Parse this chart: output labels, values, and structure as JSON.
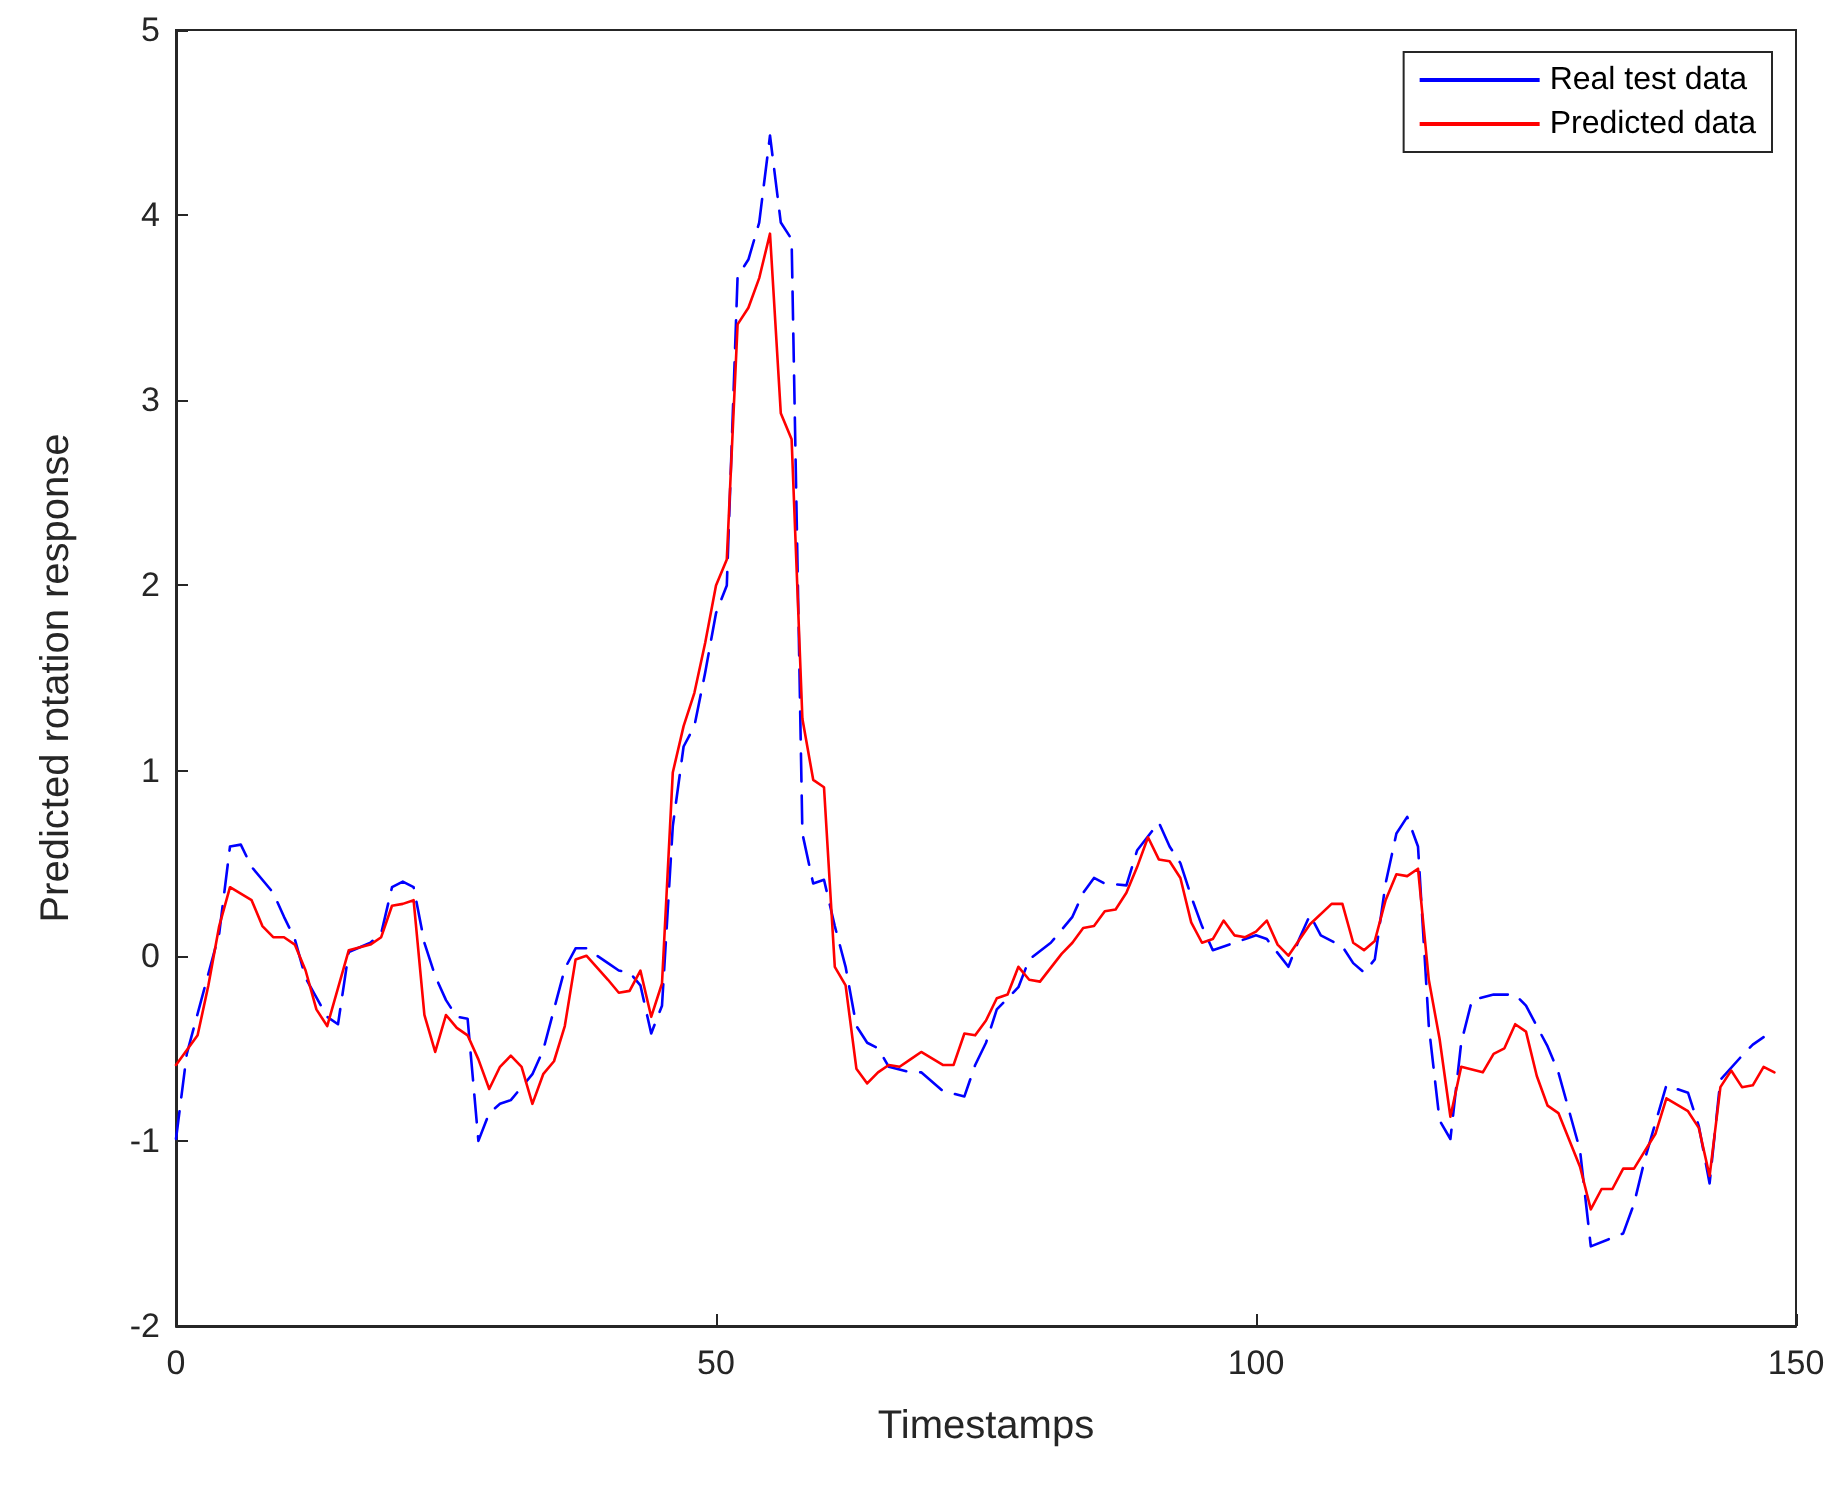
{
  "chart_data": {
    "type": "line",
    "xlabel": "Timestamps",
    "ylabel": "Predicted rotation response",
    "xlim": [
      0,
      150
    ],
    "xticks": [
      0,
      50,
      100,
      150
    ],
    "ylim": [
      -2,
      5
    ],
    "yticks": [
      -2,
      -1,
      0,
      1,
      2,
      3,
      4,
      5
    ],
    "grid": false,
    "legend": "top right",
    "marker": "none",
    "series": [
      {
        "name": "Real test data",
        "color": "#0000ff",
        "line_style": "dashed",
        "x": [
          0,
          1,
          4,
          5,
          6,
          7,
          9,
          10,
          11,
          12,
          14,
          15,
          16,
          18,
          19,
          20,
          21,
          22,
          23,
          24,
          25,
          26,
          27,
          28,
          29,
          30,
          31,
          33,
          34,
          36,
          37,
          38,
          40,
          41,
          42,
          43,
          44,
          45,
          46,
          47,
          48,
          49,
          50,
          51,
          52,
          53,
          54,
          55,
          56,
          57,
          58,
          59,
          60,
          61,
          62,
          63,
          64,
          65,
          66,
          68,
          69,
          71,
          73,
          74,
          75,
          76,
          78,
          79,
          81,
          83,
          84,
          85,
          86,
          88,
          89,
          91,
          92,
          93,
          94,
          95,
          96,
          98,
          99,
          100,
          101,
          103,
          104,
          105,
          106,
          108,
          109,
          110,
          111,
          112,
          113,
          114,
          115,
          116,
          117,
          118,
          119,
          120,
          122,
          124,
          125,
          127,
          128,
          130,
          131,
          134,
          135,
          136,
          138,
          140,
          141,
          142,
          143,
          145,
          146,
          147
        ],
        "values": [
          -0.99,
          -0.53,
          0.12,
          0.59,
          0.6,
          0.48,
          0.34,
          0.21,
          0.09,
          -0.12,
          -0.33,
          -0.37,
          0.02,
          0.07,
          0.12,
          0.37,
          0.4,
          0.37,
          0.07,
          -0.11,
          -0.24,
          -0.33,
          -0.34,
          -1.0,
          -0.85,
          -0.8,
          -0.78,
          -0.64,
          -0.51,
          -0.07,
          0.04,
          0.04,
          -0.04,
          -0.08,
          -0.09,
          -0.16,
          -0.42,
          -0.27,
          0.7,
          1.13,
          1.24,
          1.53,
          1.85,
          2.0,
          3.67,
          3.76,
          3.96,
          4.43,
          3.96,
          3.87,
          0.66,
          0.39,
          0.41,
          0.16,
          -0.06,
          -0.38,
          -0.47,
          -0.5,
          -0.6,
          -0.63,
          -0.63,
          -0.73,
          -0.76,
          -0.59,
          -0.47,
          -0.29,
          -0.17,
          -0.02,
          0.07,
          0.21,
          0.34,
          0.42,
          0.39,
          0.38,
          0.57,
          0.72,
          0.59,
          0.5,
          0.32,
          0.16,
          0.03,
          0.07,
          0.09,
          0.11,
          0.09,
          -0.06,
          0.09,
          0.22,
          0.11,
          0.05,
          -0.04,
          -0.09,
          -0.02,
          0.39,
          0.66,
          0.75,
          0.59,
          -0.38,
          -0.89,
          -0.99,
          -0.47,
          -0.24,
          -0.21,
          -0.21,
          -0.27,
          -0.49,
          -0.63,
          -1.05,
          -1.57,
          -1.5,
          -1.34,
          -1.1,
          -0.7,
          -0.74,
          -0.92,
          -1.23,
          -0.67,
          -0.54,
          -0.48,
          -0.44
        ]
      },
      {
        "name": "Predicted data",
        "color": "#ff0000",
        "line_style": "solid",
        "x": [
          0,
          2,
          3,
          4,
          5,
          7,
          8,
          9,
          10,
          11,
          12,
          13,
          14,
          16,
          18,
          19,
          20,
          21,
          22,
          23,
          24,
          25,
          26,
          27,
          28,
          29,
          30,
          31,
          32,
          33,
          34,
          35,
          36,
          37,
          38,
          40,
          41,
          42,
          43,
          44,
          45,
          46,
          47,
          48,
          49,
          50,
          51,
          52,
          53,
          54,
          55,
          56,
          57,
          58,
          59,
          60,
          61,
          62,
          63,
          64,
          65,
          66,
          67,
          68,
          69,
          71,
          72,
          73,
          74,
          75,
          76,
          77,
          78,
          79,
          80,
          82,
          83,
          84,
          85,
          86,
          87,
          88,
          89,
          90,
          91,
          92,
          93,
          94,
          95,
          96,
          97,
          98,
          99,
          100,
          101,
          102,
          103,
          105,
          107,
          108,
          109,
          110,
          111,
          112,
          113,
          114,
          115,
          116,
          117,
          118,
          119,
          121,
          122,
          123,
          124,
          125,
          126,
          127,
          128,
          130,
          131,
          132,
          133,
          134,
          135,
          137,
          138,
          140,
          141,
          142,
          143,
          144,
          145,
          146,
          147,
          148
        ],
        "values": [
          -0.59,
          -0.43,
          -0.16,
          0.16,
          0.37,
          0.3,
          0.16,
          0.1,
          0.1,
          0.06,
          -0.08,
          -0.29,
          -0.38,
          0.03,
          0.06,
          0.1,
          0.27,
          0.28,
          0.3,
          -0.32,
          -0.52,
          -0.32,
          -0.39,
          -0.43,
          -0.56,
          -0.72,
          -0.6,
          -0.54,
          -0.6,
          -0.8,
          -0.64,
          -0.57,
          -0.38,
          -0.02,
          0.0,
          -0.13,
          -0.2,
          -0.19,
          -0.08,
          -0.33,
          -0.15,
          0.99,
          1.24,
          1.42,
          1.69,
          2.0,
          2.14,
          3.41,
          3.5,
          3.66,
          3.9,
          2.93,
          2.79,
          1.28,
          0.95,
          0.91,
          -0.06,
          -0.16,
          -0.61,
          -0.69,
          -0.63,
          -0.59,
          -0.6,
          -0.56,
          -0.52,
          -0.59,
          -0.59,
          -0.42,
          -0.43,
          -0.35,
          -0.23,
          -0.21,
          -0.06,
          -0.13,
          -0.14,
          0.01,
          0.07,
          0.15,
          0.16,
          0.24,
          0.25,
          0.34,
          0.48,
          0.64,
          0.52,
          0.51,
          0.42,
          0.18,
          0.07,
          0.09,
          0.19,
          0.11,
          0.1,
          0.13,
          0.19,
          0.06,
          0.0,
          0.17,
          0.28,
          0.28,
          0.07,
          0.03,
          0.08,
          0.3,
          0.44,
          0.43,
          0.47,
          -0.13,
          -0.45,
          -0.87,
          -0.6,
          -0.63,
          -0.53,
          -0.5,
          -0.37,
          -0.41,
          -0.65,
          -0.81,
          -0.85,
          -1.14,
          -1.37,
          -1.26,
          -1.26,
          -1.15,
          -1.15,
          -0.96,
          -0.77,
          -0.84,
          -0.93,
          -1.19,
          -0.71,
          -0.62,
          -0.71,
          -0.7,
          -0.6,
          -0.63
        ]
      }
    ]
  }
}
